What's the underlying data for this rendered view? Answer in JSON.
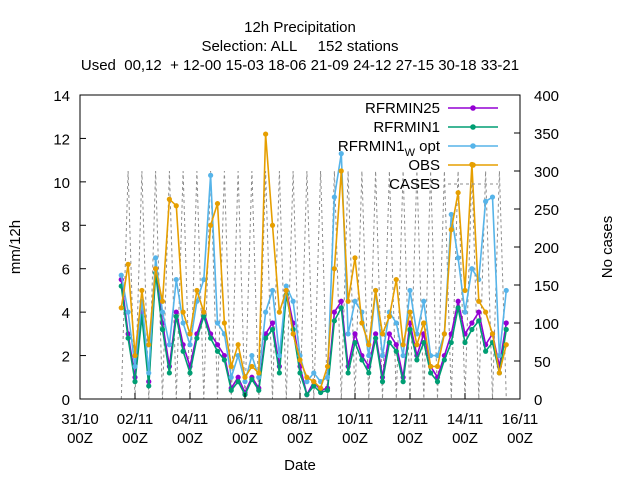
{
  "chart_data": {
    "type": "line",
    "title_lines": [
      "12h Precipitation",
      "Selection: ALL     152 stations",
      "Used  00,12  + 12-00 15-03 18-06 21-09 24-12 27-15 30-18 33-21"
    ],
    "xlabel": "Date",
    "ylabel": "mm/12h",
    "y2label": "No cases",
    "ylim": [
      0,
      14
    ],
    "y2lim": [
      0,
      400
    ],
    "yticks": [
      "0",
      "2",
      "4",
      "6",
      "8",
      "10",
      "12",
      "14"
    ],
    "y2ticks": [
      "0",
      "50",
      "100",
      "150",
      "200",
      "250",
      "300",
      "350",
      "400"
    ],
    "xlim": [
      "2022-10-31 00:00",
      "2022-11-16 00:00"
    ],
    "xticks": [
      {
        "t": "2022-10-31 00:00",
        "l1": "31/10",
        "l2": "00Z"
      },
      {
        "t": "2022-11-02 00:00",
        "l1": "02/11",
        "l2": "00Z"
      },
      {
        "t": "2022-11-04 00:00",
        "l1": "04/11",
        "l2": "00Z"
      },
      {
        "t": "2022-11-06 00:00",
        "l1": "06/11",
        "l2": "00Z"
      },
      {
        "t": "2022-11-08 00:00",
        "l1": "08/11",
        "l2": "00Z"
      },
      {
        "t": "2022-11-10 00:00",
        "l1": "10/11",
        "l2": "00Z"
      },
      {
        "t": "2022-11-12 00:00",
        "l1": "12/11",
        "l2": "00Z"
      },
      {
        "t": "2022-11-14 00:00",
        "l1": "14/11",
        "l2": "00Z"
      },
      {
        "t": "2022-11-16 00:00",
        "l1": "16/11",
        "l2": "00Z"
      }
    ],
    "legend_position": "top-right",
    "x": [
      "2022-11-01 12:00",
      "2022-11-01 18:00",
      "2022-11-02 00:00",
      "2022-11-02 06:00",
      "2022-11-02 12:00",
      "2022-11-02 18:00",
      "2022-11-03 00:00",
      "2022-11-03 06:00",
      "2022-11-03 12:00",
      "2022-11-03 18:00",
      "2022-11-04 00:00",
      "2022-11-04 06:00",
      "2022-11-04 12:00",
      "2022-11-04 18:00",
      "2022-11-05 00:00",
      "2022-11-05 06:00",
      "2022-11-05 12:00",
      "2022-11-05 18:00",
      "2022-11-06 00:00",
      "2022-11-06 06:00",
      "2022-11-06 12:00",
      "2022-11-06 18:00",
      "2022-11-07 00:00",
      "2022-11-07 06:00",
      "2022-11-07 12:00",
      "2022-11-07 18:00",
      "2022-11-08 00:00",
      "2022-11-08 06:00",
      "2022-11-08 12:00",
      "2022-11-08 18:00",
      "2022-11-09 00:00",
      "2022-11-09 06:00",
      "2022-11-09 12:00",
      "2022-11-09 18:00",
      "2022-11-10 00:00",
      "2022-11-10 06:00",
      "2022-11-10 12:00",
      "2022-11-10 18:00",
      "2022-11-11 00:00",
      "2022-11-11 06:00",
      "2022-11-11 12:00",
      "2022-11-11 18:00",
      "2022-11-12 00:00",
      "2022-11-12 06:00",
      "2022-11-12 12:00",
      "2022-11-12 18:00",
      "2022-11-13 00:00",
      "2022-11-13 06:00",
      "2022-11-13 12:00",
      "2022-11-13 18:00",
      "2022-11-14 00:00",
      "2022-11-14 06:00",
      "2022-11-14 12:00",
      "2022-11-14 18:00",
      "2022-11-15 00:00",
      "2022-11-15 06:00",
      "2022-11-15 12:00"
    ],
    "series": [
      {
        "name": "RFRMIN25",
        "color": "#9400d3",
        "axis": "y",
        "values": [
          5.5,
          3.0,
          1.0,
          4.0,
          0.8,
          6.0,
          3.5,
          1.5,
          4.0,
          2.5,
          1.5,
          3.0,
          4.0,
          3.0,
          2.5,
          2.0,
          0.5,
          1.0,
          0.3,
          1.0,
          0.5,
          3.0,
          3.5,
          1.5,
          5.0,
          3.5,
          1.5,
          0.2,
          0.8,
          0.4,
          0.5,
          4.0,
          4.5,
          1.5,
          3.0,
          2.0,
          1.5,
          3.0,
          1.0,
          3.0,
          2.5,
          1.0,
          3.5,
          2.0,
          3.0,
          1.5,
          1.0,
          2.0,
          3.0,
          4.5,
          3.0,
          3.5,
          4.0,
          2.5,
          3.0,
          1.5,
          3.5
        ]
      },
      {
        "name": "RFRMIN1",
        "color": "#009e73",
        "axis": "y",
        "values": [
          5.2,
          2.8,
          0.8,
          3.8,
          0.6,
          5.8,
          3.2,
          1.2,
          3.8,
          2.2,
          1.2,
          2.8,
          3.8,
          2.8,
          2.2,
          1.8,
          0.4,
          0.8,
          0.2,
          0.9,
          0.4,
          2.8,
          3.2,
          1.2,
          4.8,
          3.2,
          1.2,
          0.2,
          0.6,
          0.3,
          0.4,
          3.6,
          4.2,
          1.2,
          2.6,
          1.8,
          1.2,
          2.8,
          0.8,
          2.6,
          2.2,
          0.8,
          3.2,
          1.8,
          2.6,
          1.2,
          0.8,
          1.8,
          2.6,
          4.2,
          2.6,
          3.2,
          3.6,
          2.2,
          2.6,
          1.2,
          3.2
        ]
      },
      {
        "name": "RFRMIN1_W opt",
        "color": "#56b4e9",
        "axis": "y",
        "values": [
          5.7,
          4.0,
          1.5,
          4.5,
          1.2,
          6.5,
          4.0,
          2.5,
          5.5,
          3.5,
          2.5,
          4.5,
          5.5,
          10.3,
          3.5,
          3.0,
          1.0,
          2.0,
          0.8,
          2.0,
          1.0,
          4.0,
          5.0,
          2.0,
          5.2,
          4.5,
          2.0,
          0.8,
          1.2,
          0.8,
          1.0,
          9.3,
          11.3,
          3.0,
          4.5,
          4.0,
          2.0,
          5.0,
          2.0,
          4.0,
          3.5,
          2.0,
          5.0,
          3.0,
          4.5,
          2.0,
          2.0,
          3.0,
          8.5,
          6.5,
          4.0,
          6.0,
          5.5,
          9.1,
          9.3,
          2.0,
          5.0
        ]
      },
      {
        "name": "OBS",
        "color": "#e69f00",
        "axis": "y",
        "values": [
          4.2,
          6.2,
          2.0,
          5.0,
          2.5,
          6.0,
          4.5,
          9.2,
          8.9,
          4.0,
          3.0,
          5.0,
          4.0,
          8.0,
          9.0,
          3.5,
          1.5,
          2.5,
          1.0,
          1.5,
          1.2,
          12.2,
          8.0,
          4.0,
          5.0,
          3.0,
          1.8,
          1.0,
          0.8,
          0.5,
          1.5,
          6.0,
          10.5,
          4.5,
          6.5,
          3.5,
          2.5,
          5.0,
          3.0,
          3.8,
          5.5,
          2.5,
          4.0,
          2.5,
          3.5,
          1.5,
          1.5,
          3.0,
          7.8,
          9.5,
          5.0,
          10.8,
          4.5,
          4.0,
          3.0,
          1.2,
          2.5
        ]
      },
      {
        "name": "CASES",
        "color": "#8c8c8c",
        "axis": "y2",
        "dash": true,
        "values": [
          0,
          300,
          0,
          300,
          0,
          300,
          0,
          300,
          0,
          300,
          0,
          300,
          0,
          300,
          0,
          300,
          0,
          300,
          0,
          300,
          0,
          300,
          0,
          300,
          0,
          300,
          0,
          300,
          0,
          300,
          0,
          300,
          0,
          300,
          0,
          300,
          0,
          300,
          0,
          300,
          0,
          300,
          0,
          300,
          0,
          300,
          0,
          300,
          0,
          300,
          0,
          300,
          0,
          300,
          0,
          300,
          0
        ]
      }
    ]
  }
}
